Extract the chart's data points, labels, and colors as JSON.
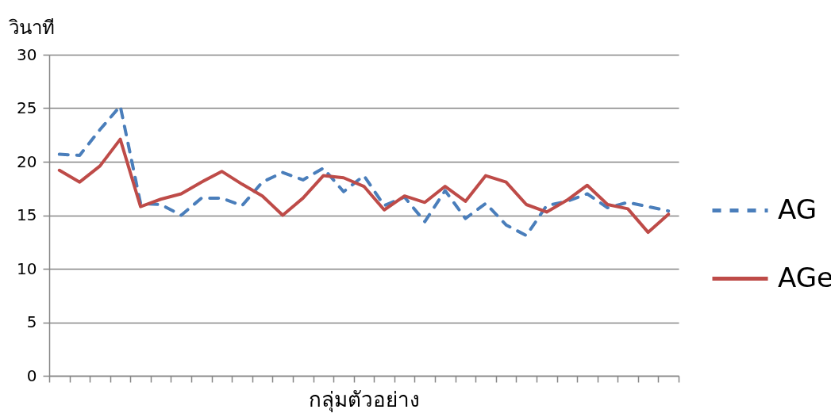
{
  "chart_data": {
    "type": "line",
    "ylabel": "วินาที",
    "xlabel": "กลุ่มตัวอย่าง",
    "categories": [
      null,
      null,
      null,
      null,
      null,
      null,
      null,
      null,
      null,
      null,
      null,
      null,
      null,
      null,
      null,
      null,
      null,
      null,
      null,
      null,
      null,
      null,
      null,
      null,
      null,
      null,
      null,
      null,
      null,
      null,
      null
    ],
    "ylim": [
      0,
      30
    ],
    "yticks": [
      0,
      5,
      10,
      15,
      20,
      25,
      30
    ],
    "grid": "y",
    "legend": "right",
    "tick_labels": "y",
    "series": [
      {
        "name": "AG",
        "color": "#4a7ebb",
        "line_style": "dashed",
        "values": [
          20.7,
          20.6,
          23.0,
          25.2,
          16.1,
          16.0,
          15.0,
          16.6,
          16.6,
          15.9,
          18.1,
          19.0,
          18.3,
          19.4,
          17.2,
          18.7,
          15.9,
          16.7,
          14.4,
          17.3,
          14.7,
          16.1,
          14.1,
          13.1,
          15.9,
          16.3,
          17.0,
          15.7,
          16.2,
          15.8,
          15.4
        ]
      },
      {
        "name": "AGe",
        "color": "#be4b48",
        "line_style": "solid",
        "values": [
          19.2,
          18.1,
          19.6,
          22.1,
          15.8,
          16.5,
          17.0,
          18.1,
          19.1,
          17.9,
          16.8,
          15.0,
          16.6,
          18.7,
          18.5,
          17.7,
          15.5,
          16.8,
          16.2,
          17.7,
          16.3,
          18.7,
          18.1,
          16.0,
          15.3,
          16.4,
          17.8,
          16.0,
          15.6,
          13.4,
          15.1
        ]
      }
    ]
  }
}
